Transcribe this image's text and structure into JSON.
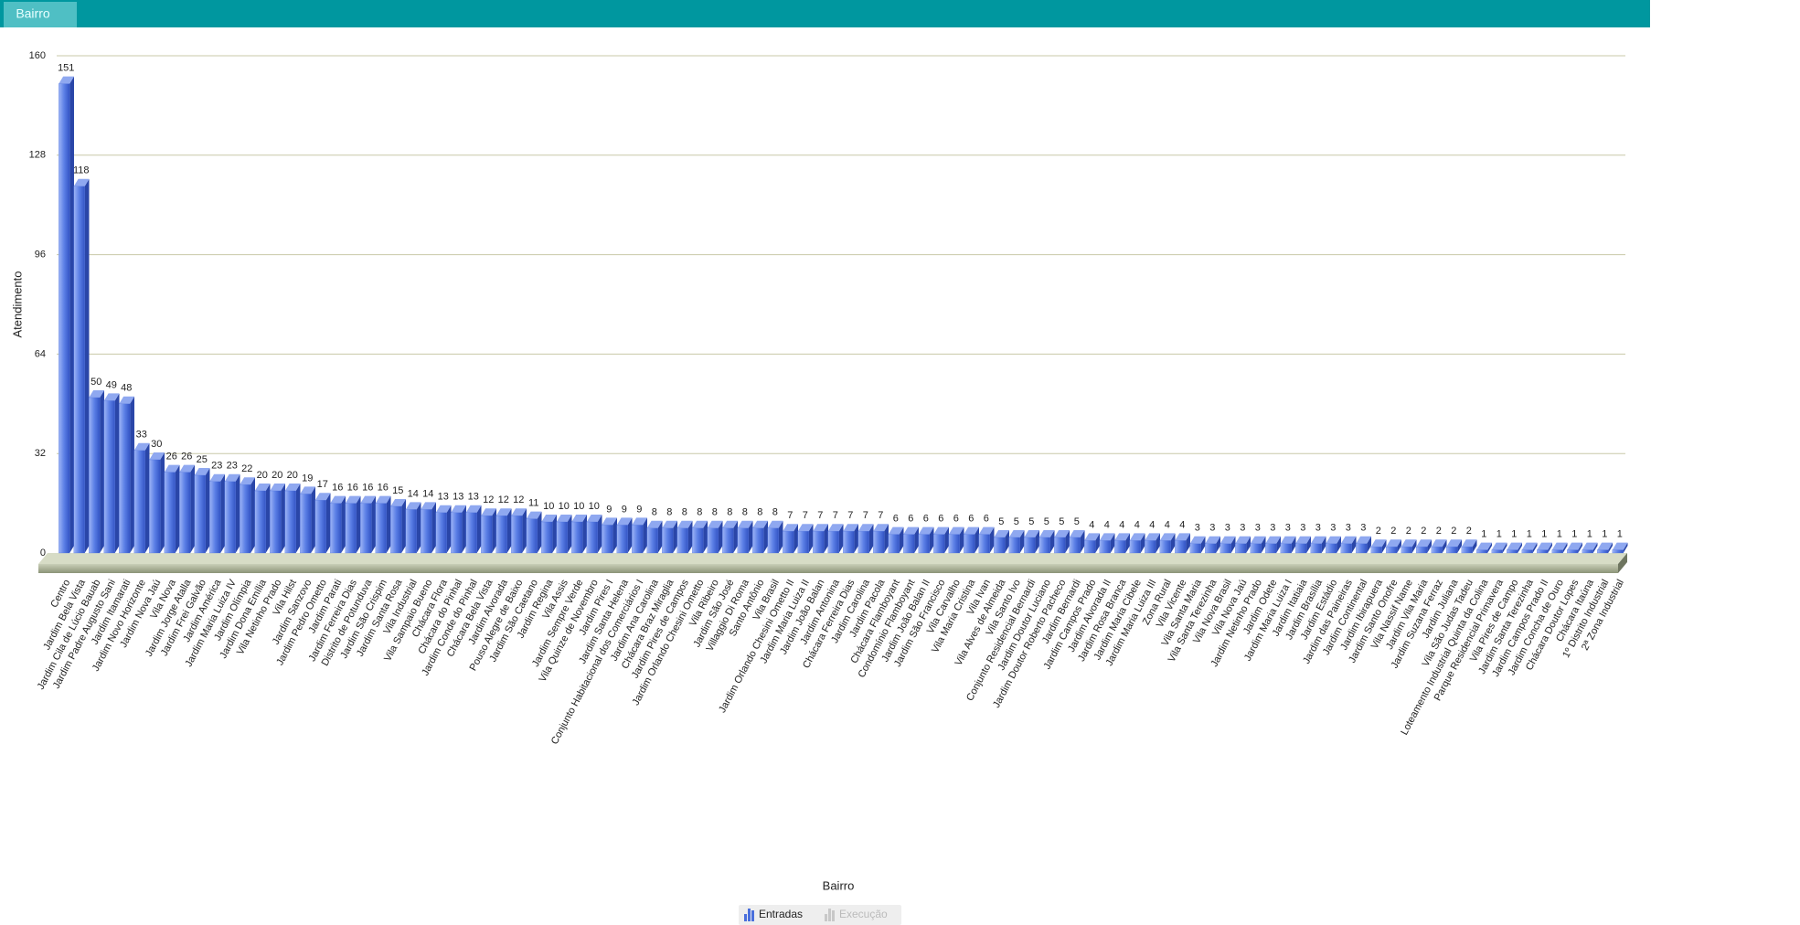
{
  "header": {
    "tab": "Bairro"
  },
  "chart_data": {
    "type": "bar3d",
    "x_label": "Bairro",
    "y_label": "Atendimento",
    "ylim": [
      0,
      160
    ],
    "yticks": [
      0,
      32,
      64,
      96,
      128,
      160
    ],
    "grid": true,
    "categories": [
      "Centro",
      "Jardim Bela Vista",
      "Jardim Cila de Lúcio Bauab",
      "Jardim Padre Augusto Sani",
      "Jardim Itamarati",
      "Jardim Novo Horizonte",
      "Jardim Nova Jaú",
      "Vila Nova",
      "Jardim Jorge Atalla",
      "Jardim Frei Galvão",
      "Jardim América",
      "Jardim Maria Luiza IV",
      "Jardim Olímpia",
      "Jardim Dona Emília",
      "Vila Netinho Prado",
      "Vila Hilst",
      "Jardim Sanzovo",
      "Jardim Pedro Ometto",
      "Jardim Parati",
      "Jardim Ferreira Dias",
      "Distrito de Potunduva",
      "Jardim São Crispim",
      "Jardim Santa Rosa",
      "Vila Industrial",
      "Vila Sampaio Bueno",
      "Chácara Flora",
      "Chácara do Pinhal",
      "Jardim Conde do Pinhal",
      "Chácara Bela Vista",
      "Jardim Alvorada",
      "Pouso Alegre de Baixo",
      "Jardim São Caetano",
      "Jardim Regina",
      "Vila Assis",
      "Jardim Sempre Verde",
      "Vila Quinze de Novembro",
      "Jardim Pires I",
      "Jardim Santa Helena",
      "Conjunto Habitacional dos Comerciários I",
      "Jardim Ana Carolina",
      "Chácara Braz Miraglia",
      "Jardim Pires de Campos",
      "Jardim Orlando Chesini Ometto",
      "Vila Ribeiro",
      "Jardim São José",
      "Villaggio Di Roma",
      "Santo Antônio",
      "Vila Brasil",
      "Jardim Orlando Chesini Ometto II",
      "Jardim Maria Luiza II",
      "Jardim João Balan",
      "Jardim Antonina",
      "Chácara Ferreira Dias",
      "Jardim Carolina",
      "Jardim Pacola",
      "Chácara Flamboyant",
      "Condomínio Flamboyant",
      "Jardim João Balan II",
      "Jardim São Francisco",
      "Vila Carvalho",
      "Vila Maria Cristina",
      "Vila Ivan",
      "Vila Alves de Almeida",
      "Vila Santo Ivo",
      "Conjunto Residencial Bernardi",
      "Jardim Doutor Luciano",
      "Jardim Doutor Roberto Pacheco",
      "Jardim Bernardi",
      "Jardim Campos Prado",
      "Jardim Alvorada II",
      "Jardim Rosa Branca",
      "Jardim Maria Cibele",
      "Jardim Maria Luiza III",
      "Zona Rural",
      "Vila Vicente",
      "Vila Santa Maria",
      "Vila Santa Terezinha",
      "Vila Nova Brasil",
      "Vila Nova Jaú",
      "Jardim Netinho Prado",
      "Jardim Odete",
      "Jardim Maria Luiza I",
      "Jardim Itatiaia",
      "Jardim Brasília",
      "Jardim Estádio",
      "Jardim das Paineiras",
      "Jardim Continental",
      "Jardim Ibirapuera",
      "Jardim Santo Onofre",
      "Vila Nassif Name",
      "Jardim Vila Maria",
      "Jardim Suzana Ferraz",
      "Jardim Juliana",
      "Vila São Judas Tadeu",
      "Loteamento Industrial Quinta da Colina",
      "Parque Residencial Primavera",
      "Vila Pires de Campo",
      "Jardim Santa Terezinha",
      "Jardim Campos Prado II",
      "Jardim Concha de Ouro",
      "Chácara Doutor Lopes",
      "Chácara Itaúna",
      "1º Distrito Industrial",
      "2ª Zona Industrial"
    ],
    "series": [
      {
        "name": "Entradas",
        "color": "#4a6fdc",
        "values": [
          151,
          118,
          50,
          49,
          48,
          33,
          30,
          26,
          26,
          25,
          23,
          23,
          22,
          20,
          20,
          20,
          19,
          17,
          16,
          16,
          16,
          16,
          15,
          14,
          14,
          13,
          13,
          13,
          12,
          12,
          12,
          11,
          10,
          10,
          10,
          10,
          9,
          9,
          9,
          8,
          8,
          8,
          8,
          8,
          8,
          8,
          8,
          8,
          7,
          7,
          7,
          7,
          7,
          7,
          7,
          6,
          6,
          6,
          6,
          6,
          6,
          6,
          5,
          5,
          5,
          5,
          5,
          5,
          4,
          4,
          4,
          4,
          4,
          4,
          4,
          3,
          3,
          3,
          3,
          3,
          3,
          3,
          3,
          3,
          3,
          3,
          3,
          2,
          2,
          2,
          2,
          2,
          2,
          2,
          1,
          1,
          1,
          1,
          1,
          1,
          1,
          1,
          1,
          1
        ]
      }
    ],
    "inactive_series": [
      "Execução"
    ]
  }
}
